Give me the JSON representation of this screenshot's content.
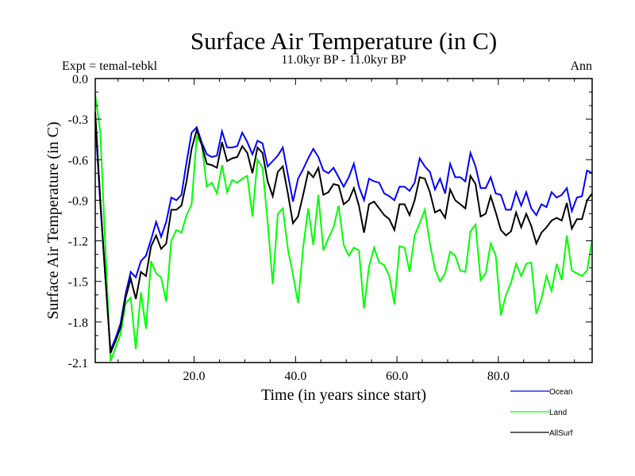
{
  "chart_data": {
    "type": "line",
    "title": "Surface Air Temperature (in C)",
    "subtitle": "11.0kyr BP - 11.0kyr BP",
    "left_annotation": "Expt = temal-tebkl",
    "right_annotation": "Ann",
    "xlabel": "Time (in years since start)",
    "ylabel": "Surface Air Temperature (in C)",
    "xlim": [
      0.5,
      98.5
    ],
    "ylim": [
      -2.1,
      0.0
    ],
    "x_ticks": [
      20,
      40,
      60,
      80
    ],
    "x_tick_labels": [
      "20.0",
      "40.0",
      "60.0",
      "80.0"
    ],
    "x_minor_step": 5,
    "y_ticks": [
      0.0,
      -0.3,
      -0.6,
      -0.9,
      -1.2,
      -1.5,
      -1.8,
      -2.1
    ],
    "y_tick_labels": [
      "0.0",
      "-0.3",
      "-0.6",
      "-0.9",
      "-1.2",
      "-1.5",
      "-1.8",
      "-2.1"
    ],
    "y_minor_step": 0.1,
    "grid": false,
    "legend_position": "bottom-right, below plot",
    "x_start": 0.5,
    "x_step": 1,
    "series": [
      {
        "name": "Ocean",
        "color": "#0000ff",
        "values": [
          -0.3,
          -0.93,
          -1.48,
          -2.01,
          -1.92,
          -1.81,
          -1.59,
          -1.43,
          -1.47,
          -1.35,
          -1.31,
          -1.19,
          -1.06,
          -1.17,
          -1.06,
          -0.88,
          -0.9,
          -0.86,
          -0.62,
          -0.4,
          -0.36,
          -0.47,
          -0.56,
          -0.58,
          -0.57,
          -0.39,
          -0.51,
          -0.51,
          -0.5,
          -0.4,
          -0.47,
          -0.56,
          -0.46,
          -0.48,
          -0.65,
          -0.61,
          -0.57,
          -0.51,
          -0.71,
          -0.91,
          -0.74,
          -0.67,
          -0.59,
          -0.52,
          -0.58,
          -0.68,
          -0.7,
          -0.66,
          -0.73,
          -0.8,
          -0.73,
          -0.63,
          -0.8,
          -0.9,
          -0.74,
          -0.76,
          -0.77,
          -0.85,
          -0.87,
          -0.9,
          -0.8,
          -0.8,
          -0.83,
          -0.77,
          -0.59,
          -0.65,
          -0.69,
          -0.82,
          -0.74,
          -0.85,
          -0.63,
          -0.73,
          -0.73,
          -0.76,
          -0.55,
          -0.65,
          -0.81,
          -0.81,
          -0.73,
          -0.85,
          -0.86,
          -0.97,
          -0.97,
          -0.84,
          -0.94,
          -0.84,
          -0.96,
          -1.01,
          -0.93,
          -0.95,
          -0.84,
          -0.88,
          -0.86,
          -0.81,
          -0.98,
          -0.88,
          -0.87,
          -0.68,
          -0.7
        ]
      },
      {
        "name": "Land",
        "color": "#00ff00",
        "values": [
          -0.12,
          -0.4,
          -1.25,
          -2.09,
          -1.99,
          -1.89,
          -1.66,
          -1.62,
          -2.0,
          -1.58,
          -1.85,
          -1.35,
          -1.44,
          -1.47,
          -1.65,
          -1.2,
          -1.12,
          -1.14,
          -1.01,
          -0.93,
          -0.43,
          -0.48,
          -0.8,
          -0.77,
          -0.85,
          -0.64,
          -0.84,
          -0.75,
          -0.77,
          -0.74,
          -0.72,
          -1.02,
          -0.6,
          -0.66,
          -1.06,
          -1.52,
          -1.0,
          -0.96,
          -1.26,
          -1.45,
          -1.66,
          -1.25,
          -0.96,
          -1.23,
          -0.86,
          -1.27,
          -1.18,
          -1.1,
          -0.94,
          -1.23,
          -1.31,
          -1.25,
          -1.27,
          -1.7,
          -1.39,
          -1.25,
          -1.36,
          -1.38,
          -1.46,
          -1.67,
          -1.24,
          -1.25,
          -1.43,
          -1.16,
          -1.07,
          -0.97,
          -1.22,
          -1.41,
          -1.5,
          -1.44,
          -1.28,
          -1.31,
          -1.42,
          -1.43,
          -1.13,
          -1.08,
          -1.49,
          -1.44,
          -1.22,
          -1.31,
          -1.75,
          -1.6,
          -1.51,
          -1.37,
          -1.46,
          -1.37,
          -1.36,
          -1.74,
          -1.63,
          -1.46,
          -1.57,
          -1.37,
          -1.49,
          -1.16,
          -1.42,
          -1.44,
          -1.46,
          -1.42,
          -1.19
        ]
      },
      {
        "name": "AllSurf",
        "color": "#000000",
        "values": [
          -0.25,
          -0.9,
          -1.47,
          -2.03,
          -1.94,
          -1.84,
          -1.62,
          -1.48,
          -1.63,
          -1.43,
          -1.46,
          -1.24,
          -1.16,
          -1.26,
          -1.22,
          -0.97,
          -0.97,
          -0.94,
          -0.76,
          -0.52,
          -0.38,
          -0.49,
          -0.63,
          -0.64,
          -0.66,
          -0.47,
          -0.61,
          -0.59,
          -0.58,
          -0.5,
          -0.55,
          -0.7,
          -0.51,
          -0.55,
          -0.76,
          -0.87,
          -0.69,
          -0.65,
          -0.85,
          -1.07,
          -1.02,
          -0.86,
          -0.69,
          -0.73,
          -0.66,
          -0.86,
          -0.84,
          -0.78,
          -0.79,
          -0.93,
          -0.9,
          -0.81,
          -0.94,
          -1.14,
          -0.93,
          -0.91,
          -0.96,
          -1.01,
          -1.04,
          -1.12,
          -0.93,
          -0.93,
          -1.01,
          -0.9,
          -0.73,
          -0.74,
          -0.84,
          -0.99,
          -0.97,
          -1.03,
          -0.82,
          -0.9,
          -0.93,
          -0.96,
          -0.72,
          -0.78,
          -1.02,
          -1.0,
          -0.87,
          -0.99,
          -1.12,
          -1.16,
          -1.13,
          -0.99,
          -1.1,
          -1.0,
          -1.09,
          -1.22,
          -1.14,
          -1.1,
          -1.05,
          -1.03,
          -1.05,
          -0.92,
          -1.11,
          -1.04,
          -1.04,
          -0.9,
          -0.85
        ]
      }
    ]
  }
}
